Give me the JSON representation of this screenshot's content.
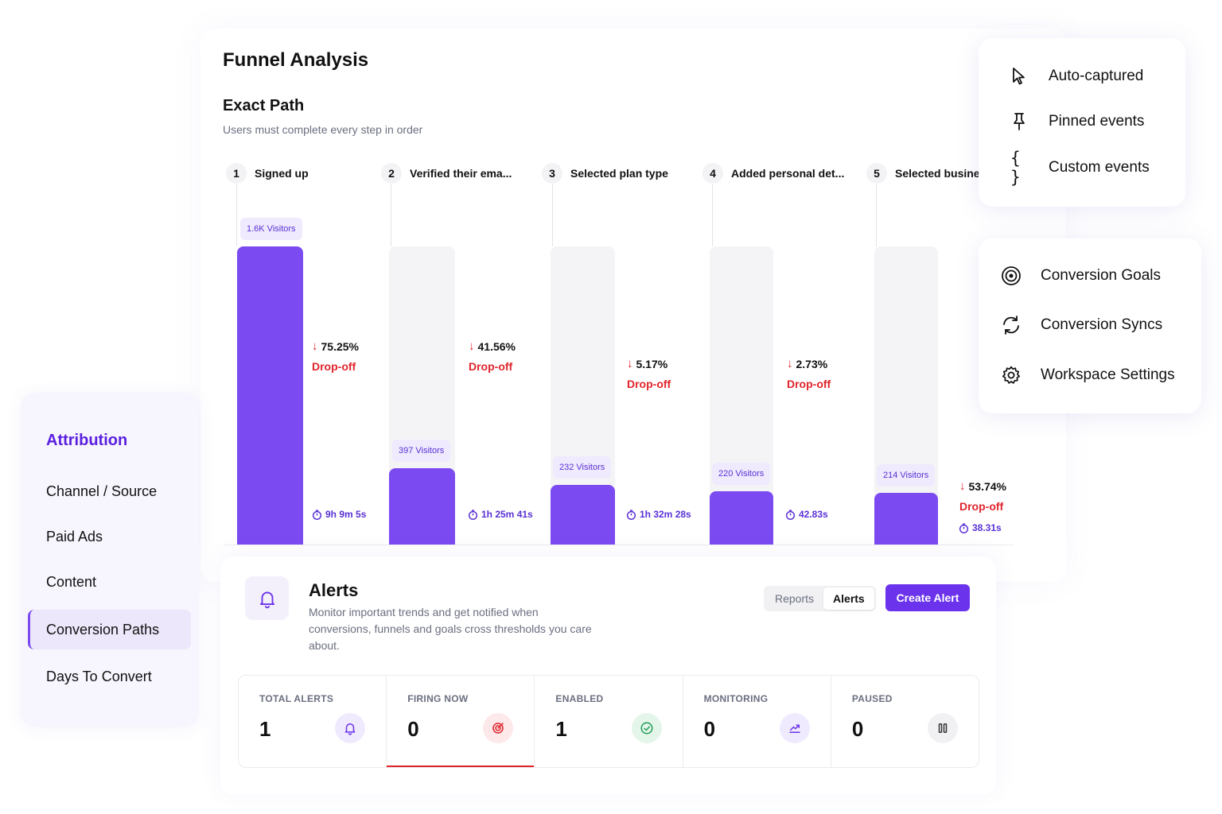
{
  "funnel": {
    "title": "Funnel Analysis",
    "section_title": "Exact Path",
    "section_subtitle": "Users must complete every step in order",
    "steps": [
      {
        "num": "1",
        "label": "Signed up",
        "visitors": "1.6K Visitors",
        "fill": 1.0,
        "drop_pct": "75.25%",
        "drop_label": "Drop-off",
        "time": "9h 9m 5s"
      },
      {
        "num": "2",
        "label": "Verified their ema...",
        "visitors": "397 Visitors",
        "fill": 0.257,
        "drop_pct": "41.56%",
        "drop_label": "Drop-off",
        "time": "1h 25m 41s"
      },
      {
        "num": "3",
        "label": "Selected plan type",
        "visitors": "232 Visitors",
        "fill": 0.203,
        "drop_pct": "5.17%",
        "drop_label": "Drop-off",
        "time": "1h 32m 28s"
      },
      {
        "num": "4",
        "label": "Added personal det...",
        "visitors": "220 Visitors",
        "fill": 0.181,
        "drop_pct": "2.73%",
        "drop_label": "Drop-off",
        "time": "42.83s"
      },
      {
        "num": "5",
        "label": "Selected busines",
        "visitors": "214 Visitors",
        "fill": 0.176,
        "drop_pct": "53.74%",
        "drop_label": "Drop-off",
        "time": "38.31s"
      }
    ]
  },
  "event_menu": {
    "items": [
      {
        "label": "Auto-captured",
        "icon": "cursor-icon"
      },
      {
        "label": "Pinned events",
        "icon": "pin-icon"
      },
      {
        "label": "Custom events",
        "icon": "braces-icon"
      }
    ]
  },
  "settings_menu": {
    "items": [
      {
        "label": "Conversion Goals",
        "icon": "target-icon"
      },
      {
        "label": "Conversion Syncs",
        "icon": "sync-icon"
      },
      {
        "label": "Workspace Settings",
        "icon": "gear-icon"
      }
    ]
  },
  "attribution": {
    "title": "Attribution",
    "items": [
      "Channel / Source",
      "Paid Ads",
      "Content",
      "Conversion Paths",
      "Days To Convert"
    ],
    "active": "Conversion Paths"
  },
  "alerts": {
    "title": "Alerts",
    "description": "Monitor important trends and get notified when conversions, funnels and goals cross thresholds you care about.",
    "tabs": [
      "Reports",
      "Alerts"
    ],
    "active_tab": "Alerts",
    "create_label": "Create Alert",
    "stats": [
      {
        "label": "TOTAL ALERTS",
        "value": "1",
        "icon": "bell-icon"
      },
      {
        "label": "FIRING NOW",
        "value": "0",
        "icon": "firing-icon"
      },
      {
        "label": "ENABLED",
        "value": "1",
        "icon": "check-circle-icon"
      },
      {
        "label": "MONITORING",
        "value": "0",
        "icon": "trend-icon"
      },
      {
        "label": "PAUSED",
        "value": "0",
        "icon": "pause-icon"
      }
    ]
  },
  "colors": {
    "accent": "#7b4af0",
    "accent_dark": "#5a1fe0",
    "drop": "#e0242b",
    "track": "#f4f4f6"
  }
}
